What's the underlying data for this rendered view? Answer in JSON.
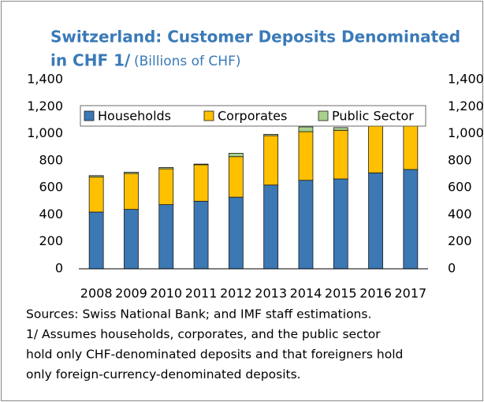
{
  "chart_data": {
    "type": "bar",
    "stacked": true,
    "title": [
      "Switzerland:  Customer Deposits Denominated",
      "in CHF 1/"
    ],
    "subtitle": "(Billions of CHF)",
    "categories": [
      "2008",
      "2009",
      "2010",
      "2011",
      "2012",
      "2013",
      "2014",
      "2015",
      "2016",
      "2017"
    ],
    "series": [
      {
        "name": "Households",
        "color": "#3b78b4",
        "values": [
          420,
          440,
          475,
          500,
          530,
          620,
          655,
          665,
          710,
          735
        ]
      },
      {
        "name": "Corporates",
        "color": "#ffc000",
        "values": [
          260,
          265,
          265,
          270,
          300,
          365,
          360,
          360,
          360,
          380
        ]
      },
      {
        "name": "Public Sector",
        "color": "#a9d18e",
        "values": [
          10,
          10,
          10,
          5,
          25,
          10,
          35,
          20,
          20,
          40
        ]
      }
    ],
    "ylim": [
      0,
      1400
    ],
    "yticks": [
      0,
      200,
      400,
      600,
      800,
      {
        "value": 1000,
        "label": "1,000"
      },
      {
        "value": 1200,
        "label": "1,200"
      },
      {
        "value": 1400,
        "label": "1,400"
      }
    ],
    "y2lim": [
      0,
      1400
    ],
    "y2ticks": [
      0,
      200,
      400,
      600,
      800,
      {
        "value": 1000,
        "label": "1,000"
      },
      {
        "value": 1200,
        "label": "1,200"
      },
      {
        "value": 1400,
        "label": "1,400"
      }
    ],
    "legend": "top",
    "notes": [
      "Sources: Swiss National Bank; and IMF staff estimations.",
      "1/ Assumes households, corporates, and the public sector",
      "hold only CHF-denominated deposits and that foreigners hold",
      "only foreign-currency-denominated deposits."
    ]
  }
}
